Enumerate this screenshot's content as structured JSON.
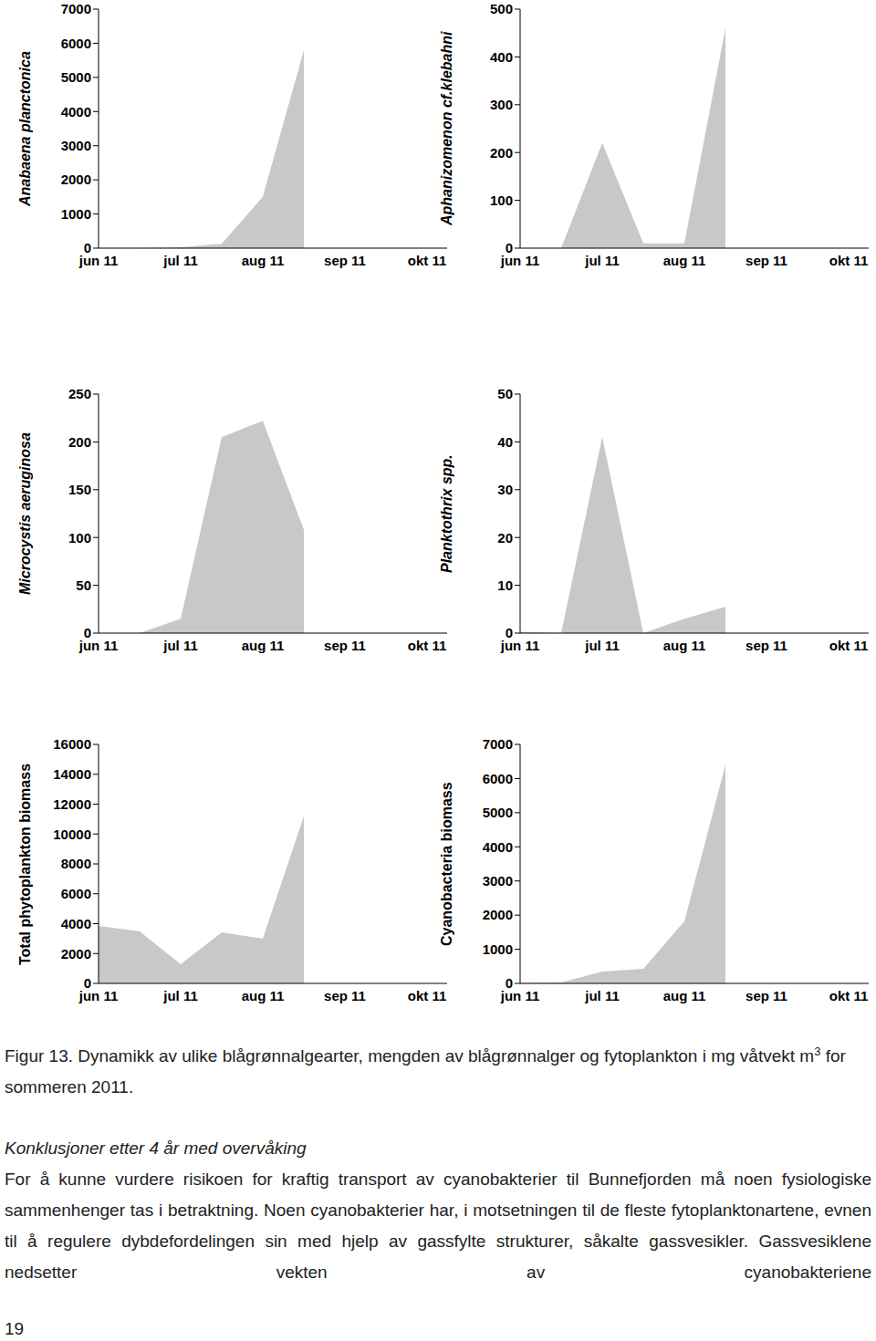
{
  "chart_data": [
    {
      "type": "area",
      "ylabel": "Anabaena planctonica",
      "categories": [
        "jun 11",
        null,
        "jul 11",
        null,
        "aug 11",
        null,
        "sep 11",
        null,
        "okt 11"
      ],
      "values": [
        0,
        0,
        30,
        130,
        1500,
        5800,
        null,
        null,
        null
      ],
      "color": "#c8c8c8",
      "ylim": [
        0,
        7000
      ],
      "yticks": [
        0,
        1000,
        2000,
        3000,
        4000,
        5000,
        6000,
        7000
      ],
      "grid": false
    },
    {
      "type": "area",
      "ylabel": "Aphanizomenon cf.klebahni",
      "categories": [
        "jun 11",
        null,
        "jul 11",
        null,
        "aug 11",
        null,
        "sep 11",
        null,
        "okt 11"
      ],
      "values": [
        0,
        0,
        220,
        10,
        10,
        460,
        null,
        null,
        null
      ],
      "color": "#c8c8c8",
      "ylim": [
        0,
        500
      ],
      "yticks": [
        0,
        100,
        200,
        300,
        400,
        500
      ],
      "grid": false
    },
    {
      "type": "area",
      "ylabel": "Microcystis aeruginosa",
      "categories": [
        "jun 11",
        null,
        "jul 11",
        null,
        "aug 11",
        null,
        "sep 11",
        null,
        "okt 11"
      ],
      "values": [
        0,
        0,
        15,
        205,
        222,
        108,
        null,
        null,
        null
      ],
      "color": "#c8c8c8",
      "ylim": [
        0,
        250
      ],
      "yticks": [
        0,
        50,
        100,
        150,
        200,
        250
      ],
      "grid": false
    },
    {
      "type": "area",
      "ylabel": "Planktothrix spp.",
      "categories": [
        "jun 11",
        null,
        "jul 11",
        null,
        "aug 11",
        null,
        "sep 11",
        null,
        "okt 11"
      ],
      "values": [
        0.3,
        0,
        41,
        0,
        3,
        5.5,
        null,
        null,
        null
      ],
      "color": "#c8c8c8",
      "ylim": [
        0,
        50
      ],
      "yticks": [
        0,
        10,
        20,
        30,
        40,
        50
      ],
      "grid": false
    },
    {
      "type": "area",
      "ylabel": "Total phytoplankton biomass",
      "categories": [
        "jun 11",
        null,
        "jul 11",
        null,
        "aug 11",
        null,
        "sep 11",
        null,
        "okt 11"
      ],
      "values": [
        3850,
        3480,
        1280,
        3420,
        3000,
        11200,
        null,
        null,
        null
      ],
      "color": "#c8c8c8",
      "ylim": [
        0,
        16000
      ],
      "yticks": [
        0,
        2000,
        4000,
        6000,
        8000,
        10000,
        12000,
        14000,
        16000
      ],
      "grid": false
    },
    {
      "type": "area",
      "ylabel": "Cyanobacteria biomass",
      "categories": [
        "jun 11",
        null,
        "jul 11",
        null,
        "aug 11",
        null,
        "sep 11",
        null,
        "okt 11"
      ],
      "values": [
        20,
        30,
        350,
        430,
        1820,
        6400,
        null,
        null,
        null
      ],
      "color": "#c8c8c8",
      "ylim": [
        0,
        7000
      ],
      "yticks": [
        0,
        1000,
        2000,
        3000,
        4000,
        5000,
        6000,
        7000
      ],
      "grid": false
    }
  ],
  "caption": {
    "text_before": "Figur 13. Dynamikk av ulike blågrønnalgearter, mengden av blågrønnalger og fytoplankton i mg våtvekt m",
    "superscript": "3",
    "text_after": " for sommeren 2011."
  },
  "heading": "Konklusjoner etter 4 år med overvåking",
  "paragraph": "For å kunne vurdere risikoen for kraftig transport av cyanobakterier til Bunnefjorden må noen fysiologiske sammenhenger tas i betraktning. Noen cyanobakterier har, i motsetningen til de fleste fytoplanktonartene, evnen til å regulere dybdefordelingen sin med hjelp av gassfylte strukturer, såkalte gassvesikler. Gassvesiklene nedsetter vekten av cyanobakteriene",
  "page_number": "19"
}
